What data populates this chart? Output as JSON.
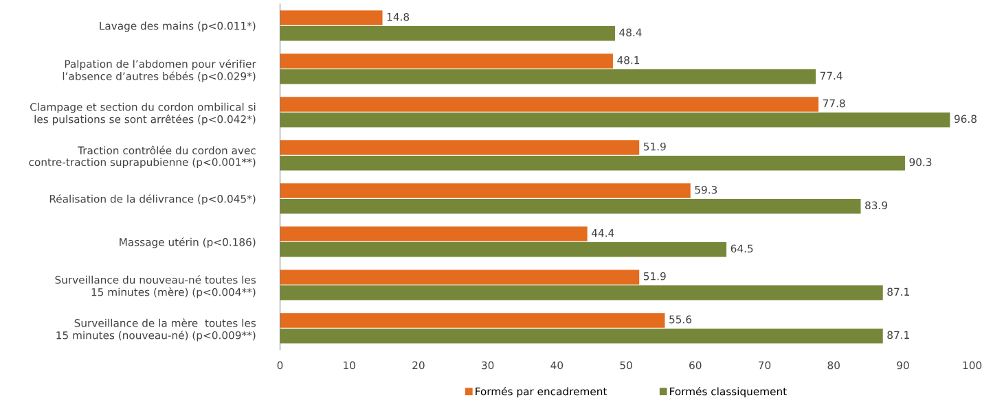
{
  "chart_data": {
    "type": "bar",
    "orientation": "horizontal",
    "categories": [
      "Lavage des mains (p<0.011*)",
      "Palpation de l’abdomen pour vérifier\nl’absence d’autres bébés (p<0.029*)",
      "Clampage et section du cordon ombilical si\nles pulsations se sont arrêtées (p<0.042*)",
      "Traction contrôlée du cordon avec\ncontre-traction suprapubienne (p<0.001**)",
      "Réalisation de la délivrance (p<0.045*)",
      "Massage utérin (p<0.186)",
      "Surveillance du nouveau-né toutes les\n15 minutes (mère) (p<0.004**)",
      "Surveillance de la mère  toutes les\n15 minutes (nouveau-né) (p<0.009**)"
    ],
    "series": [
      {
        "name": "Formés par encadrement",
        "color": "#e46c1e",
        "values": [
          14.8,
          48.1,
          77.8,
          51.9,
          59.3,
          44.4,
          51.9,
          55.6
        ]
      },
      {
        "name": "Formés classiquement",
        "color": "#77873a",
        "values": [
          48.4,
          77.4,
          96.8,
          90.3,
          83.9,
          64.5,
          87.1,
          87.1
        ]
      }
    ],
    "xlim": [
      0,
      100
    ],
    "xticks": [
      0,
      10,
      20,
      30,
      40,
      50,
      60,
      70,
      80,
      90,
      100
    ],
    "data_labels": true,
    "grid": false,
    "legend": "bottom"
  }
}
